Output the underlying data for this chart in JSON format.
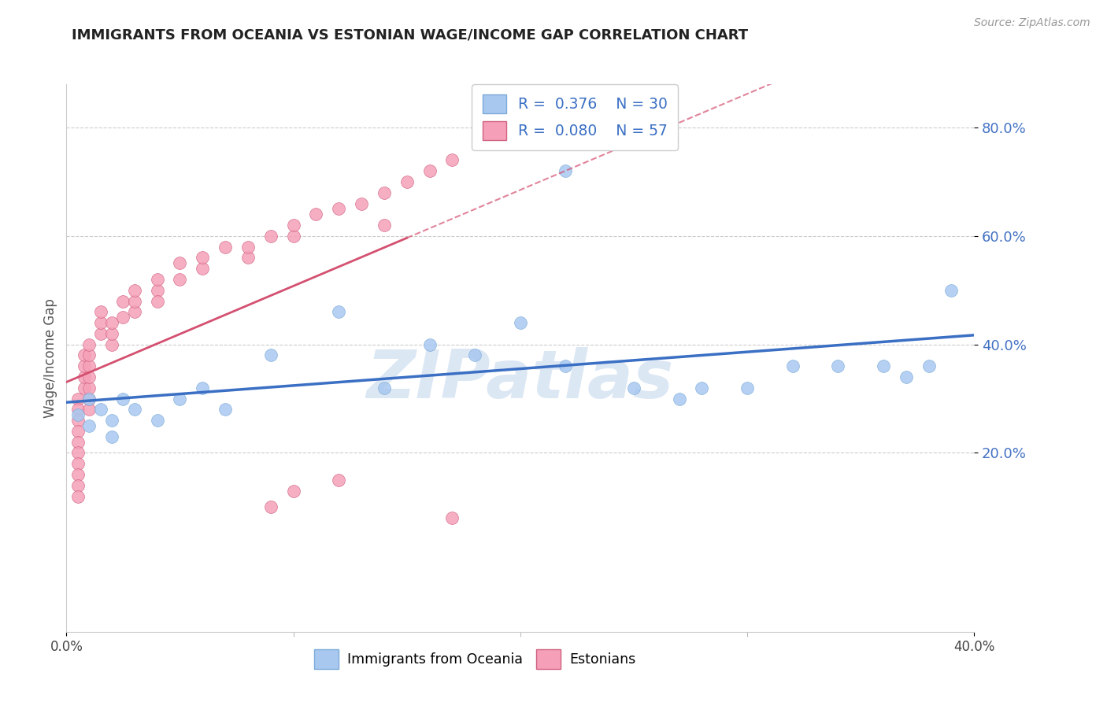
{
  "title": "IMMIGRANTS FROM OCEANIA VS ESTONIAN WAGE/INCOME GAP CORRELATION CHART",
  "source": "Source: ZipAtlas.com",
  "ylabel": "Wage/Income Gap",
  "xlim": [
    0.0,
    0.4
  ],
  "ylim": [
    -0.13,
    0.88
  ],
  "yticks": [
    0.2,
    0.4,
    0.6,
    0.8
  ],
  "series1_name": "Immigrants from Oceania",
  "series1_color": "#A8C8F0",
  "series1_edge_color": "#7BAAD8",
  "series1_R": 0.376,
  "series1_N": 30,
  "series2_name": "Estonians",
  "series2_color": "#F5A0B8",
  "series2_edge_color": "#D06080",
  "series2_R": 0.08,
  "series2_N": 57,
  "watermark": "ZIPatlas",
  "background_color": "#FFFFFF",
  "grid_color": "#CCCCCC",
  "trend1_color": "#3A6FC4",
  "trend2_color": "#D45070",
  "ytick_color": "#4472C4",
  "title_color": "#222222",
  "source_color": "#999999",
  "scatter_size": 130,
  "series1_x": [
    0.005,
    0.01,
    0.01,
    0.015,
    0.02,
    0.02,
    0.025,
    0.03,
    0.04,
    0.05,
    0.06,
    0.07,
    0.09,
    0.12,
    0.14,
    0.16,
    0.18,
    0.2,
    0.22,
    0.25,
    0.27,
    0.28,
    0.3,
    0.32,
    0.34,
    0.36,
    0.37,
    0.38,
    0.39,
    0.22
  ],
  "series1_y": [
    0.27,
    0.3,
    0.25,
    0.28,
    0.26,
    0.23,
    0.3,
    0.28,
    0.26,
    0.3,
    0.32,
    0.28,
    0.38,
    0.46,
    0.32,
    0.4,
    0.38,
    0.44,
    0.36,
    0.32,
    0.3,
    0.32,
    0.32,
    0.36,
    0.36,
    0.36,
    0.34,
    0.36,
    0.5,
    0.72
  ],
  "series2_x": [
    0.005,
    0.005,
    0.005,
    0.005,
    0.005,
    0.005,
    0.005,
    0.005,
    0.005,
    0.005,
    0.008,
    0.008,
    0.008,
    0.008,
    0.01,
    0.01,
    0.01,
    0.01,
    0.01,
    0.01,
    0.01,
    0.015,
    0.015,
    0.015,
    0.02,
    0.02,
    0.02,
    0.025,
    0.025,
    0.03,
    0.03,
    0.03,
    0.04,
    0.04,
    0.04,
    0.05,
    0.05,
    0.06,
    0.06,
    0.07,
    0.08,
    0.08,
    0.09,
    0.1,
    0.1,
    0.11,
    0.12,
    0.13,
    0.14,
    0.14,
    0.15,
    0.16,
    0.17,
    0.09,
    0.12,
    0.17,
    0.1
  ],
  "series2_y": [
    0.3,
    0.28,
    0.26,
    0.24,
    0.22,
    0.2,
    0.18,
    0.16,
    0.14,
    0.12,
    0.32,
    0.34,
    0.36,
    0.38,
    0.28,
    0.3,
    0.32,
    0.34,
    0.36,
    0.38,
    0.4,
    0.42,
    0.44,
    0.46,
    0.4,
    0.42,
    0.44,
    0.45,
    0.48,
    0.46,
    0.48,
    0.5,
    0.5,
    0.52,
    0.48,
    0.52,
    0.55,
    0.54,
    0.56,
    0.58,
    0.56,
    0.58,
    0.6,
    0.6,
    0.62,
    0.64,
    0.65,
    0.66,
    0.68,
    0.62,
    0.7,
    0.72,
    0.74,
    0.1,
    0.15,
    0.08,
    0.13
  ],
  "trend1_x_start": 0.0,
  "trend1_x_end": 0.4,
  "trend2_x_start": 0.0,
  "trend2_x_end": 0.15,
  "trend2_dash_x_start": 0.15,
  "trend2_dash_x_end": 0.4
}
